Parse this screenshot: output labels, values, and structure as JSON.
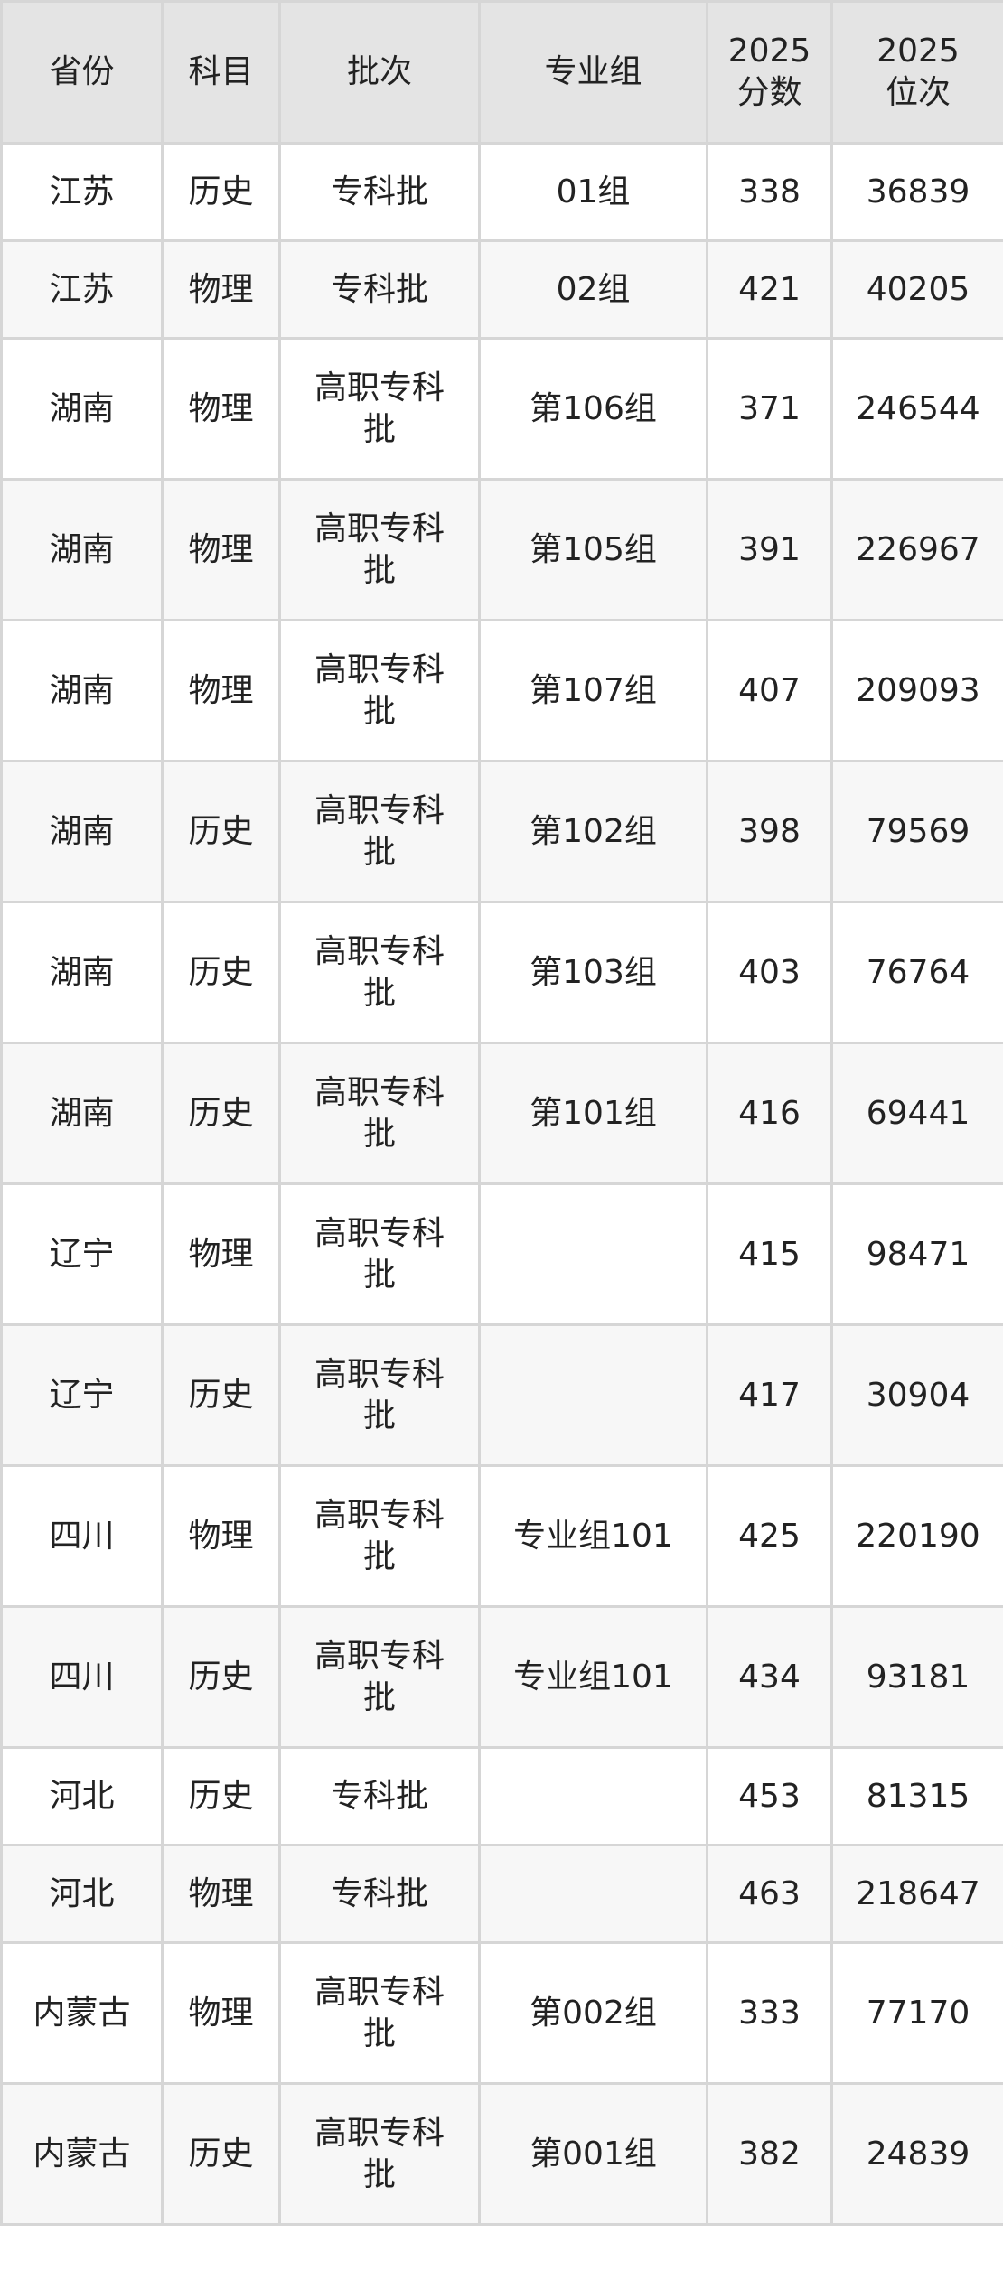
{
  "headers": [
    "省份",
    "科目",
    "批次",
    "专业组",
    "2025\n分数",
    "2025\n位次"
  ],
  "rows": [
    [
      "江苏",
      "历史",
      "专科批",
      "01组",
      "338",
      "36839"
    ],
    [
      "江苏",
      "物理",
      "专科批",
      "02组",
      "421",
      "40205"
    ],
    [
      "湖南",
      "物理",
      "高职专科批",
      "第106组",
      "371",
      "246544"
    ],
    [
      "湖南",
      "物理",
      "高职专科批",
      "第105组",
      "391",
      "226967"
    ],
    [
      "湖南",
      "物理",
      "高职专科批",
      "第107组",
      "407",
      "209093"
    ],
    [
      "湖南",
      "历史",
      "高职专科批",
      "第102组",
      "398",
      "79569"
    ],
    [
      "湖南",
      "历史",
      "高职专科批",
      "第103组",
      "403",
      "76764"
    ],
    [
      "湖南",
      "历史",
      "高职专科批",
      "第101组",
      "416",
      "69441"
    ],
    [
      "辽宁",
      "物理",
      "高职专科批",
      "",
      "415",
      "98471"
    ],
    [
      "辽宁",
      "历史",
      "高职专科批",
      "",
      "417",
      "30904"
    ],
    [
      "四川",
      "物理",
      "高职专科批",
      "专业组101",
      "425",
      "220190"
    ],
    [
      "四川",
      "历史",
      "高职专科批",
      "专业组101",
      "434",
      "93181"
    ],
    [
      "河北",
      "历史",
      "专科批",
      "",
      "453",
      "81315"
    ],
    [
      "河北",
      "物理",
      "专科批",
      "",
      "463",
      "218647"
    ],
    [
      "内蒙古",
      "物理",
      "高职专科批",
      "第002组",
      "333",
      "77170"
    ],
    [
      "内蒙古",
      "历史",
      "高职专科批",
      "第001组",
      "382",
      "24839"
    ]
  ]
}
